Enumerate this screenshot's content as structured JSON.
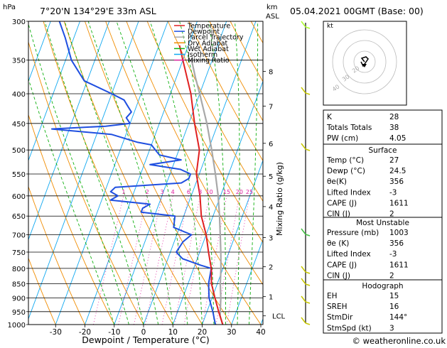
{
  "header": {
    "hpa_label": "hPa",
    "location": "7°20'N  134°29'E  33m  ASL",
    "km_label": "km",
    "asl_label": "ASL",
    "datetime": "05.04.2021  00GMT  (Base: 00)"
  },
  "chart_data": [
    {
      "type": "skew-t",
      "xlabel": "Dewpoint / Temperature (°C)",
      "ylabel_right": "Mixing Ratio (g/kg)",
      "pressure_levels": [
        300,
        350,
        400,
        450,
        500,
        550,
        600,
        650,
        700,
        750,
        800,
        850,
        900,
        950,
        1000
      ],
      "temperature_ticks": [
        -30,
        -20,
        -10,
        0,
        10,
        20,
        30,
        40
      ],
      "xlim": [
        -40,
        40
      ],
      "ylim": [
        1000,
        300
      ],
      "height_km_ticks": [
        {
          "label": "8",
          "p": 366
        },
        {
          "label": "7",
          "p": 420
        },
        {
          "label": "6",
          "p": 487
        },
        {
          "label": "5",
          "p": 555
        },
        {
          "label": "4",
          "p": 626
        },
        {
          "label": "3",
          "p": 708
        },
        {
          "label": "2",
          "p": 795
        },
        {
          "label": "1",
          "p": 895
        },
        {
          "label": "LCL",
          "p": 966
        }
      ],
      "mixing_ratio_labels": [
        "1",
        "2",
        "3",
        "4",
        "6",
        "8",
        "10",
        "15",
        "20",
        "25"
      ],
      "legend": [
        {
          "name": "Temperature",
          "color": "#e02020"
        },
        {
          "name": "Dewpoint",
          "color": "#1f4fe0"
        },
        {
          "name": "Parcel Trajectory",
          "color": "#a8a8a8"
        },
        {
          "name": "Dry Adiabat",
          "color": "#f08c00"
        },
        {
          "name": "Wet Adiabat",
          "color": "#10b010"
        },
        {
          "name": "Isotherm",
          "color": "#10a8f0"
        },
        {
          "name": "Mixing Ratio",
          "color": "#e020a0"
        }
      ],
      "series": [
        {
          "name": "Temperature",
          "points": [
            [
              1000,
              27
            ],
            [
              950,
              24
            ],
            [
              900,
              21
            ],
            [
              850,
              18
            ],
            [
              800,
              16
            ],
            [
              750,
              13
            ],
            [
              700,
              10
            ],
            [
              650,
              6
            ],
            [
              600,
              3
            ],
            [
              550,
              -1
            ],
            [
              500,
              -3
            ],
            [
              450,
              -8
            ],
            [
              400,
              -13
            ],
            [
              350,
              -20
            ],
            [
              330,
              -23
            ]
          ]
        },
        {
          "name": "Dewpoint",
          "points": [
            [
              1000,
              24.5
            ],
            [
              950,
              22
            ],
            [
              900,
              19
            ],
            [
              850,
              17
            ],
            [
              800,
              16
            ],
            [
              790,
              12
            ],
            [
              770,
              5
            ],
            [
              750,
              2
            ],
            [
              720,
              3
            ],
            [
              700,
              5
            ],
            [
              680,
              -2
            ],
            [
              650,
              -3
            ],
            [
              640,
              -15
            ],
            [
              630,
              -15
            ],
            [
              620,
              -13
            ],
            [
              610,
              -27
            ],
            [
              600,
              -25
            ],
            [
              590,
              -28
            ],
            [
              580,
              -27
            ],
            [
              570,
              -5
            ],
            [
              560,
              -3
            ],
            [
              550,
              -3
            ],
            [
              540,
              -7
            ],
            [
              530,
              -18
            ],
            [
              520,
              -8
            ],
            [
              510,
              -16
            ],
            [
              500,
              -18
            ],
            [
              490,
              -20
            ],
            [
              485,
              -25
            ],
            [
              470,
              -35
            ],
            [
              460,
              -56
            ],
            [
              455,
              -38
            ],
            [
              450,
              -30
            ],
            [
              440,
              -32
            ],
            [
              430,
              -31
            ],
            [
              420,
              -33
            ],
            [
              410,
              -35
            ],
            [
              400,
              -40
            ],
            [
              380,
              -51
            ],
            [
              350,
              -58
            ],
            [
              320,
              -63
            ],
            [
              300,
              -67
            ]
          ]
        },
        {
          "name": "Parcel Trajectory",
          "points": [
            [
              1000,
              27
            ],
            [
              966,
              25
            ],
            [
              900,
              23
            ],
            [
              850,
              21
            ],
            [
              800,
              19.3
            ],
            [
              750,
              17.2
            ],
            [
              700,
              14.8
            ],
            [
              650,
              12.2
            ],
            [
              600,
              9.2
            ],
            [
              550,
              5.5
            ],
            [
              500,
              1.2
            ],
            [
              450,
              -3.8
            ],
            [
              400,
              -10
            ],
            [
              375,
              -13.5
            ],
            [
              350,
              -17
            ]
          ]
        }
      ]
    },
    {
      "type": "hodograph",
      "title": "kt",
      "ring_labels": [
        "20",
        "30",
        "40"
      ]
    }
  ],
  "indices": {
    "rows1": [
      {
        "label": "K",
        "value": "28"
      },
      {
        "label": "Totals Totals",
        "value": "38"
      },
      {
        "label": "PW (cm)",
        "value": "4.05"
      }
    ],
    "surface_title": "Surface",
    "surface": [
      {
        "label": "Temp (°C)",
        "value": "27"
      },
      {
        "label": "Dewp (°C)",
        "value": "24.5"
      },
      {
        "label": "θe(K)",
        "value": "356"
      },
      {
        "label": "Lifted Index",
        "value": "-3"
      },
      {
        "label": "CAPE (J)",
        "value": "1611"
      },
      {
        "label": "CIN (J)",
        "value": "2"
      }
    ],
    "unstable_title": "Most Unstable",
    "unstable": [
      {
        "label": "Pressure (mb)",
        "value": "1003"
      },
      {
        "label": "θe (K)",
        "value": "356"
      },
      {
        "label": "Lifted Index",
        "value": "-3"
      },
      {
        "label": "CAPE (J)",
        "value": "1611"
      },
      {
        "label": "CIN (J)",
        "value": "2"
      }
    ],
    "hodo_title": "Hodograph",
    "hodograph": [
      {
        "label": "EH",
        "value": "15"
      },
      {
        "label": "SREH",
        "value": "16"
      },
      {
        "label": "StmDir",
        "value": "144°"
      },
      {
        "label": "StmSpd (kt)",
        "value": "3"
      }
    ]
  },
  "footer": {
    "copyright": "© weatheronline.co.uk"
  }
}
